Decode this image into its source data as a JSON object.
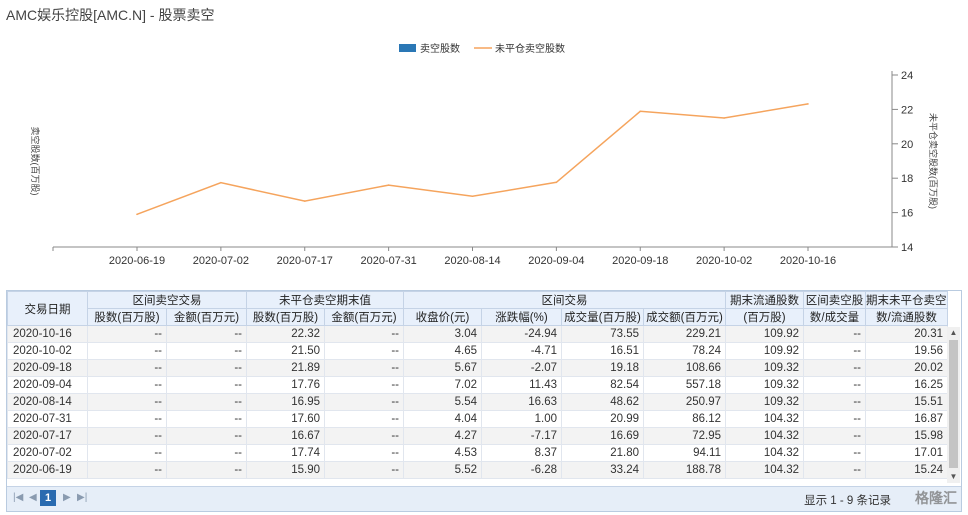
{
  "page": {
    "title": "AMC娱乐控股[AMC.N] - 股票卖空"
  },
  "colors": {
    "bar_series": "#2a77b5",
    "line_series": "#f5a45d",
    "header_bg": "#e8f0fb",
    "pager_active": "#2a6bb0"
  },
  "chart_data": {
    "type": "line",
    "categories": [
      "2020-06-19",
      "2020-07-02",
      "2020-07-17",
      "2020-07-31",
      "2020-08-14",
      "2020-09-04",
      "2020-09-18",
      "2020-10-02",
      "2020-10-16"
    ],
    "series": [
      {
        "name": "卖空股数",
        "axis": "left",
        "values": [
          null,
          null,
          null,
          null,
          null,
          null,
          null,
          null,
          null
        ]
      },
      {
        "name": "未平仓卖空股数",
        "axis": "right",
        "values": [
          15.9,
          17.74,
          16.67,
          17.6,
          16.95,
          17.76,
          21.89,
          21.5,
          22.32
        ]
      }
    ],
    "legend": [
      "卖空股数",
      "未平仓卖空股数"
    ],
    "legend_position": "top-center",
    "ylabel_left": "卖空股数(百万股)",
    "ylabel_right": "未平仓卖空股数(百万股)",
    "y_right_ticks": [
      14,
      16,
      18,
      20,
      22,
      24
    ],
    "ylim_right": [
      14,
      24
    ],
    "grid": false
  },
  "table": {
    "group_headers": [
      "交易日期",
      "区间卖空交易",
      "未平仓卖空期末值",
      "区间交易",
      "期末流通股数",
      "区间卖空股",
      "期末未平仓卖空股"
    ],
    "sub_headers": [
      "股数(百万股)",
      "金额(百万元)",
      "股数(百万股)",
      "金额(百万元)",
      "收盘价(元)",
      "涨跌幅(%)",
      "成交量(百万股)",
      "成交额(百万元)",
      "(百万股)",
      "数/成交量",
      "数/流通股数"
    ],
    "rows": [
      [
        "2020-10-16",
        "--",
        "--",
        "22.32",
        "--",
        "3.04",
        "-24.94",
        "73.55",
        "229.21",
        "109.92",
        "--",
        "20.31"
      ],
      [
        "2020-10-02",
        "--",
        "--",
        "21.50",
        "--",
        "4.65",
        "-4.71",
        "16.51",
        "78.24",
        "109.92",
        "--",
        "19.56"
      ],
      [
        "2020-09-18",
        "--",
        "--",
        "21.89",
        "--",
        "5.67",
        "-2.07",
        "19.18",
        "108.66",
        "109.32",
        "--",
        "20.02"
      ],
      [
        "2020-09-04",
        "--",
        "--",
        "17.76",
        "--",
        "7.02",
        "11.43",
        "82.54",
        "557.18",
        "109.32",
        "--",
        "16.25"
      ],
      [
        "2020-08-14",
        "--",
        "--",
        "16.95",
        "--",
        "5.54",
        "16.63",
        "48.62",
        "250.97",
        "109.32",
        "--",
        "15.51"
      ],
      [
        "2020-07-31",
        "--",
        "--",
        "17.60",
        "--",
        "4.04",
        "1.00",
        "20.99",
        "86.12",
        "104.32",
        "--",
        "16.87"
      ],
      [
        "2020-07-17",
        "--",
        "--",
        "16.67",
        "--",
        "4.27",
        "-7.17",
        "16.69",
        "72.95",
        "104.32",
        "--",
        "15.98"
      ],
      [
        "2020-07-02",
        "--",
        "--",
        "17.74",
        "--",
        "4.53",
        "8.37",
        "21.80",
        "94.11",
        "104.32",
        "--",
        "17.01"
      ],
      [
        "2020-06-19",
        "--",
        "--",
        "15.90",
        "--",
        "5.52",
        "-6.28",
        "33.24",
        "188.78",
        "104.32",
        "--",
        "15.24"
      ]
    ]
  },
  "pager": {
    "current_page": "1",
    "summary": "显示 1 - 9 条记录",
    "watermark": "格隆汇"
  },
  "icons": {
    "first": "first-page-icon",
    "prev": "prev-page-icon",
    "next": "next-page-icon",
    "last": "last-page-icon"
  }
}
